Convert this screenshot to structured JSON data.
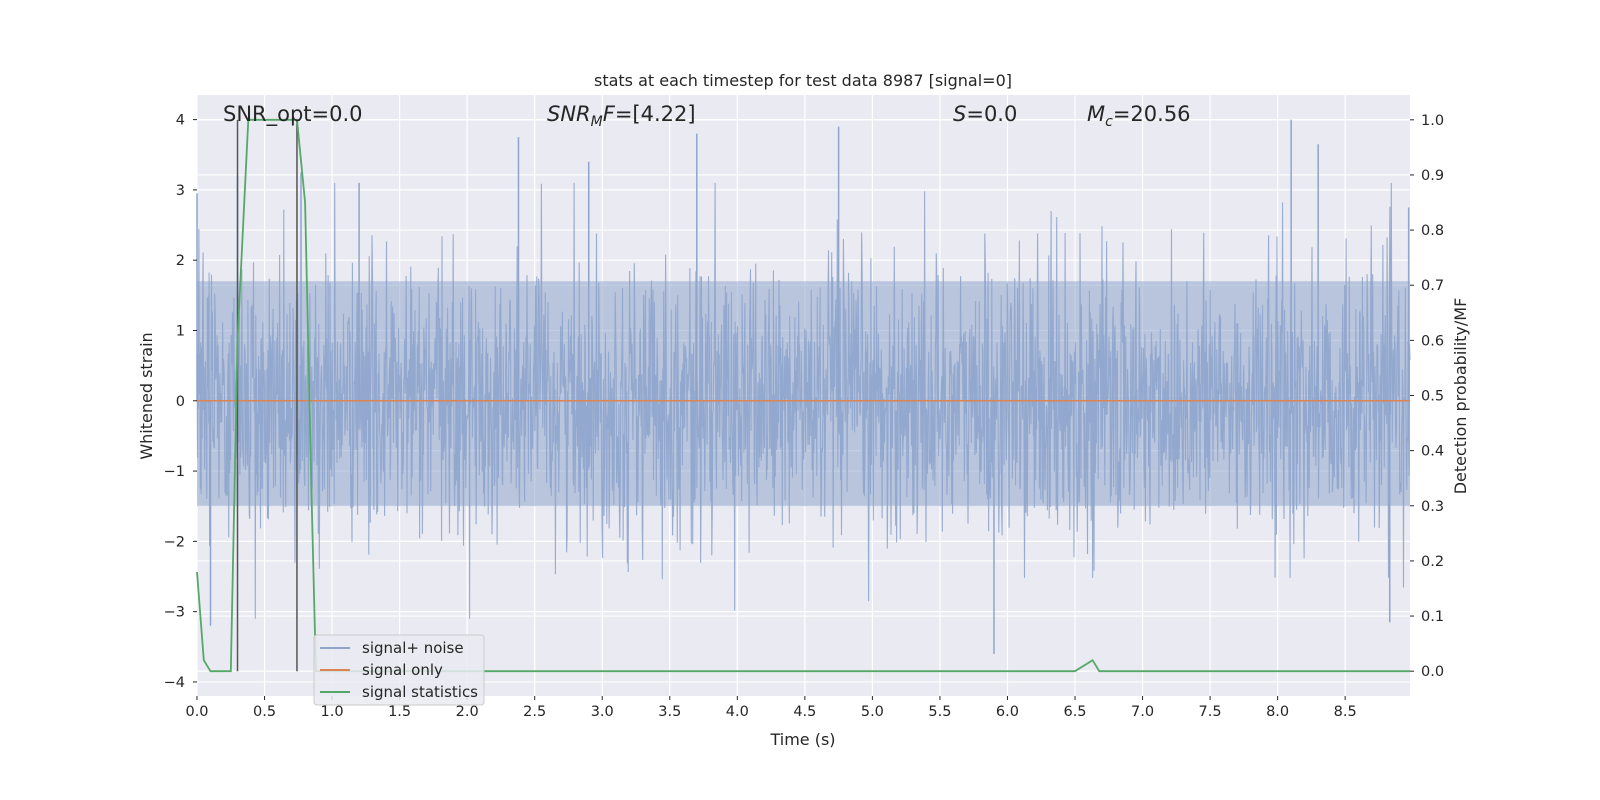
{
  "chart_data": {
    "type": "line",
    "title": "stats at each timestep for test data 8987 [signal=0]",
    "xlabel": "Time (s)",
    "ylabel": "Whitened strain",
    "ylabel_right": "Detection probability/MF",
    "xlim": [
      0.0,
      8.98
    ],
    "ylim": [
      -4.2,
      4.35
    ],
    "ylim_right": [
      -0.045,
      1.045
    ],
    "xticks": [
      "0.0",
      "0.5",
      "1.0",
      "1.5",
      "2.0",
      "2.5",
      "3.0",
      "3.5",
      "4.0",
      "4.5",
      "5.0",
      "5.5",
      "6.0",
      "6.5",
      "7.0",
      "7.5",
      "8.0",
      "8.5"
    ],
    "yticks_left": [
      "4",
      "3",
      "2",
      "1",
      "0",
      "−1",
      "−2",
      "−3",
      "−4"
    ],
    "yticks_right": [
      "1.0",
      "0.9",
      "0.8",
      "0.7",
      "0.6",
      "0.5",
      "0.4",
      "0.3",
      "0.2",
      "0.1",
      "0.0"
    ],
    "grid": true,
    "legend_position": "lower-left",
    "annotations": {
      "snr_opt": "SNR_opt=0.0",
      "snr_mf_main": "SNR",
      "snr_mf_sub": "M",
      "snr_mf_rest": "F=[4.22]",
      "s_italic": "S",
      "s_value": "=0.0",
      "mc_italic": "M",
      "mc_sub": "c",
      "mc_value": "=20.56"
    },
    "vertical_markers_x": [
      0.3,
      0.74
    ],
    "series": [
      {
        "name": "signal+ noise",
        "color": "#8fa5cc",
        "style": "dense noise",
        "envelope_typical": [
          -1.5,
          1.7
        ],
        "peaks": [
          {
            "x": 0.0,
            "y": 2.95
          },
          {
            "x": 0.1,
            "y": -3.2
          },
          {
            "x": 0.3,
            "y": 3.2
          },
          {
            "x": 0.77,
            "y": 3.25
          },
          {
            "x": 1.2,
            "y": 3.1
          },
          {
            "x": 2.38,
            "y": 3.75
          },
          {
            "x": 2.9,
            "y": 3.4
          },
          {
            "x": 3.7,
            "y": 3.8
          },
          {
            "x": 4.75,
            "y": 3.9
          },
          {
            "x": 5.9,
            "y": -3.6
          },
          {
            "x": 8.1,
            "y": 4.0
          },
          {
            "x": 8.3,
            "y": 3.65
          },
          {
            "x": 8.83,
            "y": -3.15
          },
          {
            "x": 8.97,
            "y": 2.75
          }
        ]
      },
      {
        "name": "signal only",
        "color": "#dd8452",
        "x": [
          0.0,
          8.98
        ],
        "y": [
          0.0,
          0.0
        ]
      },
      {
        "name": "signal statistics",
        "color": "#55a868",
        "axis": "right",
        "x": [
          0.0,
          0.05,
          0.1,
          0.25,
          0.3,
          0.38,
          0.74,
          0.8,
          0.85,
          0.88,
          6.5,
          6.63,
          6.68,
          8.98
        ],
        "y": [
          0.18,
          0.02,
          0.0,
          0.0,
          0.6,
          1.0,
          1.0,
          0.85,
          0.3,
          0.0,
          0.0,
          0.02,
          0.0,
          0.0
        ]
      }
    ]
  }
}
